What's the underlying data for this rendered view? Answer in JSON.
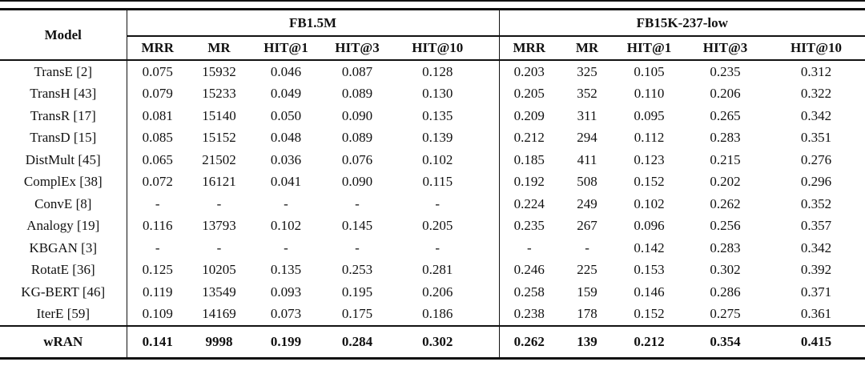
{
  "colors": {
    "text": "#111111",
    "border": "#111111",
    "background": "#ffffff"
  },
  "table": {
    "model_header": "Model",
    "groups": [
      {
        "label": "FB1.5M",
        "columns": [
          "MRR",
          "MR",
          "HIT@1",
          "HIT@3",
          "HIT@10"
        ]
      },
      {
        "label": "FB15K-237-low",
        "columns": [
          "MRR",
          "MR",
          "HIT@1",
          "HIT@3",
          "HIT@10"
        ]
      }
    ],
    "rows": [
      {
        "model": "TransE [2]",
        "fb15m": [
          "0.075",
          "15932",
          "0.046",
          "0.087",
          "0.128"
        ],
        "fb15k": [
          "0.203",
          "325",
          "0.105",
          "0.235",
          "0.312"
        ]
      },
      {
        "model": "TransH [43]",
        "fb15m": [
          "0.079",
          "15233",
          "0.049",
          "0.089",
          "0.130"
        ],
        "fb15k": [
          "0.205",
          "352",
          "0.110",
          "0.206",
          "0.322"
        ]
      },
      {
        "model": "TransR [17]",
        "fb15m": [
          "0.081",
          "15140",
          "0.050",
          "0.090",
          "0.135"
        ],
        "fb15k": [
          "0.209",
          "311",
          "0.095",
          "0.265",
          "0.342"
        ]
      },
      {
        "model": "TransD [15]",
        "fb15m": [
          "0.085",
          "15152",
          "0.048",
          "0.089",
          "0.139"
        ],
        "fb15k": [
          "0.212",
          "294",
          "0.112",
          "0.283",
          "0.351"
        ]
      },
      {
        "model": "DistMult [45]",
        "fb15m": [
          "0.065",
          "21502",
          "0.036",
          "0.076",
          "0.102"
        ],
        "fb15k": [
          "0.185",
          "411",
          "0.123",
          "0.215",
          "0.276"
        ]
      },
      {
        "model": "ComplEx [38]",
        "fb15m": [
          "0.072",
          "16121",
          "0.041",
          "0.090",
          "0.115"
        ],
        "fb15k": [
          "0.192",
          "508",
          "0.152",
          "0.202",
          "0.296"
        ]
      },
      {
        "model": "ConvE [8]",
        "fb15m": [
          "-",
          "-",
          "-",
          "-",
          "-"
        ],
        "fb15k": [
          "0.224",
          "249",
          "0.102",
          "0.262",
          "0.352"
        ]
      },
      {
        "model": "Analogy [19]",
        "fb15m": [
          "0.116",
          "13793",
          "0.102",
          "0.145",
          "0.205"
        ],
        "fb15k": [
          "0.235",
          "267",
          "0.096",
          "0.256",
          "0.357"
        ]
      },
      {
        "model": "KBGAN [3]",
        "fb15m": [
          "-",
          "-",
          "-",
          "-",
          "-"
        ],
        "fb15k": [
          "-",
          "-",
          "0.142",
          "0.283",
          "0.342"
        ]
      },
      {
        "model": "RotatE [36]",
        "fb15m": [
          "0.125",
          "10205",
          "0.135",
          "0.253",
          "0.281"
        ],
        "fb15k": [
          "0.246",
          "225",
          "0.153",
          "0.302",
          "0.392"
        ]
      },
      {
        "model": "KG-BERT [46]",
        "fb15m": [
          "0.119",
          "13549",
          "0.093",
          "0.195",
          "0.206"
        ],
        "fb15k": [
          "0.258",
          "159",
          "0.146",
          "0.286",
          "0.371"
        ]
      },
      {
        "model": "IterE [59]",
        "fb15m": [
          "0.109",
          "14169",
          "0.073",
          "0.175",
          "0.186"
        ],
        "fb15k": [
          "0.238",
          "178",
          "0.152",
          "0.275",
          "0.361"
        ]
      }
    ],
    "footer_row": {
      "model": "wRAN",
      "fb15m": [
        "0.141",
        "9998",
        "0.199",
        "0.284",
        "0.302"
      ],
      "fb15k": [
        "0.262",
        "139",
        "0.212",
        "0.354",
        "0.415"
      ]
    }
  }
}
